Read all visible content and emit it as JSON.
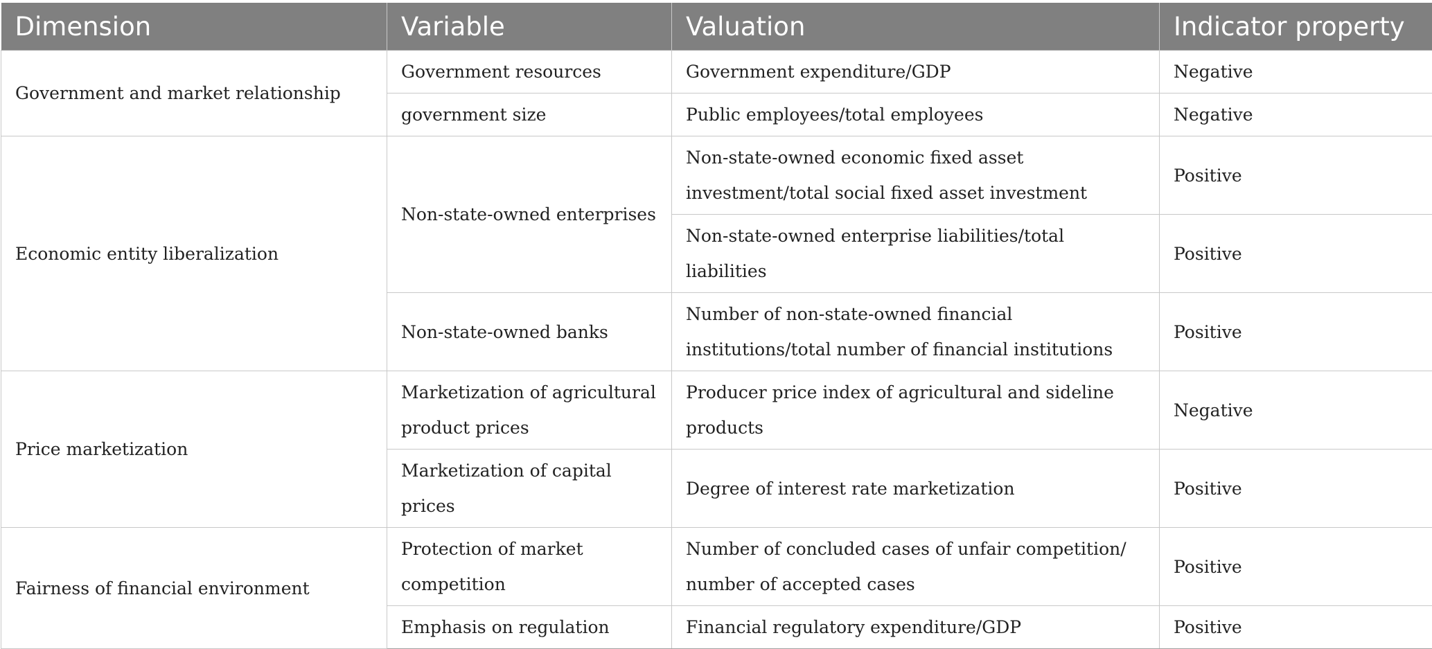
{
  "table": {
    "headers": [
      "Dimension",
      "Variable",
      "Valuation",
      "Indicator property"
    ],
    "groups": [
      {
        "dimension": "Government and market relationship",
        "rows": [
          {
            "variable": "Government resources",
            "valuation": "Government expenditure/GDP",
            "property": "Negative"
          },
          {
            "variable": "government size",
            "valuation": "Public employees/total employees",
            "property": "Negative"
          }
        ]
      },
      {
        "dimension": "Economic entity liberalization",
        "rows": [
          {
            "variable": "Non-state-owned enterprises",
            "valuation": "Non-state-owned economic fixed asset investment/total social fixed asset investment",
            "property": "Positive"
          },
          {
            "variable": "",
            "valuation": "Non-state-owned enterprise liabilities/total liabilities",
            "property": "Positive"
          },
          {
            "variable": "Non-state-owned banks",
            "valuation": "Number of non-state-owned financial institutions/total number of financial institutions",
            "property": "Positive"
          }
        ]
      },
      {
        "dimension": "Price marketization",
        "rows": [
          {
            "variable": "Marketization of agricultural product prices",
            "valuation": "Producer price index of agricultural and sideline products",
            "property": "Negative"
          },
          {
            "variable": "Marketization of capital prices",
            "valuation": "Degree of interest rate marketization",
            "property": "Positive"
          }
        ]
      },
      {
        "dimension": "Fairness of financial environment",
        "rows": [
          {
            "variable": "Protection of market competition",
            "valuation": "Number of concluded cases of unfair competition/ number of accepted cases",
            "property": "Positive"
          },
          {
            "variable": "Emphasis on regulation",
            "valuation": "Financial regulatory expenditure/GDP",
            "property": "Positive"
          }
        ]
      }
    ]
  }
}
